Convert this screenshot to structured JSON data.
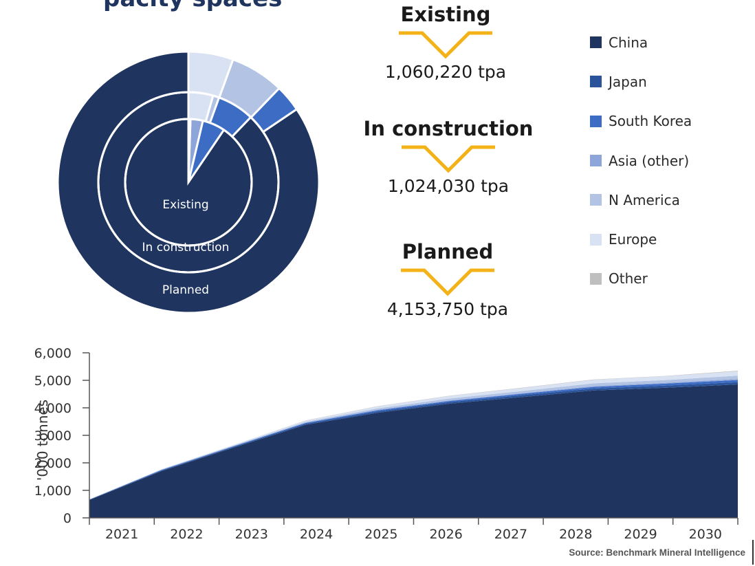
{
  "title_fragment": "pacity spaces",
  "statuses": [
    {
      "label": "Existing",
      "value": "1,060,220 tpa"
    },
    {
      "label": "In construction",
      "value": "1,024,030 tpa"
    },
    {
      "label": "Planned",
      "value": "4,153,750 tpa"
    }
  ],
  "legend": [
    {
      "name": "China",
      "color": "#1f3560"
    },
    {
      "name": "Japan",
      "color": "#2a539a"
    },
    {
      "name": "South Korea",
      "color": "#3d6cc4"
    },
    {
      "name": "Asia (other)",
      "color": "#8da5d8"
    },
    {
      "name": "N America",
      "color": "#b3c3e4"
    },
    {
      "name": "Europe",
      "color": "#d9e2f3"
    },
    {
      "name": "Other",
      "color": "#bfbfbf"
    }
  ],
  "source": "Source: Benchmark Mineral Intelligence",
  "colors": {
    "accent": "#f3b318",
    "navy": "#1f3560"
  },
  "chart_data": [
    {
      "type": "pie",
      "variant": "nested-donut",
      "ring_labels": [
        "Existing",
        "In construction",
        "Planned"
      ],
      "series": [
        {
          "name": "Existing",
          "values": [
            0.86,
            0.0,
            0.055,
            0.03,
            0.0,
            0.0,
            0.005
          ]
        },
        {
          "name": "In construction",
          "values": [
            0.795,
            0.0,
            0.06,
            0.0,
            0.01,
            0.04,
            0.0
          ]
        },
        {
          "name": "Planned",
          "values": [
            0.76,
            0.0,
            0.03,
            0.0,
            0.06,
            0.05,
            0.0
          ]
        }
      ],
      "categories": [
        "China",
        "Japan",
        "South Korea",
        "Asia (other)",
        "N America",
        "Europe",
        "Other"
      ]
    },
    {
      "type": "area",
      "stacked": true,
      "x": [
        "2021",
        "2022",
        "2023",
        "2024",
        "2025",
        "2026",
        "2027",
        "2028",
        "2029",
        "2030"
      ],
      "ylabel": "'000 tonnes",
      "ylim": [
        0,
        6000
      ],
      "yticks": [
        "0",
        "1,000",
        "2,000",
        "3,000",
        "4,000",
        "5,000",
        "6,000"
      ],
      "series": [
        {
          "name": "China",
          "values": [
            650,
            1700,
            2550,
            3380,
            3820,
            4150,
            4390,
            4630,
            4730,
            4850
          ]
        },
        {
          "name": "Japan",
          "values": [
            10,
            20,
            30,
            40,
            50,
            60,
            70,
            70,
            80,
            80
          ]
        },
        {
          "name": "South Korea",
          "values": [
            10,
            20,
            20,
            30,
            40,
            40,
            50,
            60,
            70,
            80
          ]
        },
        {
          "name": "Asia (other)",
          "values": [
            0,
            10,
            10,
            10,
            20,
            20,
            20,
            30,
            30,
            40
          ]
        },
        {
          "name": "N America",
          "values": [
            0,
            10,
            20,
            30,
            50,
            70,
            80,
            100,
            100,
            120
          ]
        },
        {
          "name": "Europe",
          "values": [
            0,
            10,
            20,
            40,
            70,
            90,
            110,
            130,
            140,
            160
          ]
        },
        {
          "name": "Other",
          "values": [
            0,
            0,
            0,
            10,
            10,
            10,
            10,
            10,
            10,
            20
          ]
        }
      ]
    }
  ]
}
